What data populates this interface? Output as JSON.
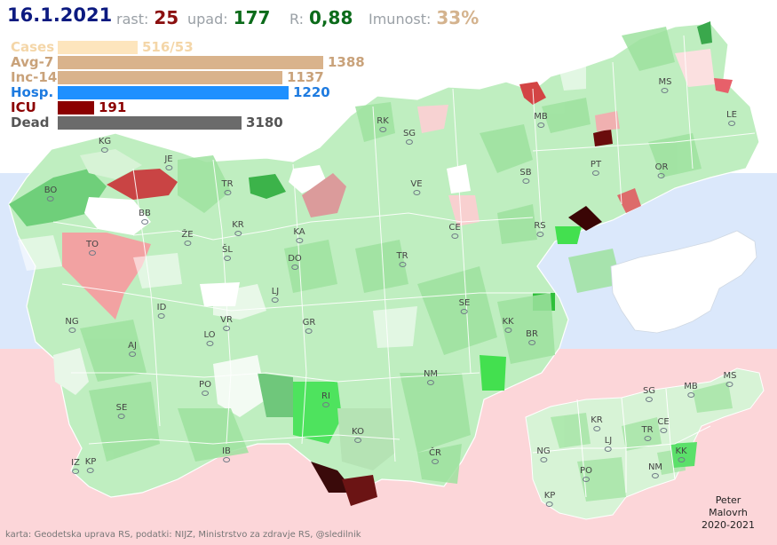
{
  "header": {
    "date": "16.1.2021",
    "rast_label": "rast:",
    "rast_value": "25",
    "upad_label": "upad:",
    "upad_value": "177",
    "r_label": "R:",
    "r_value": "0,88",
    "imunost_label": "Imunost:",
    "imunost_value": "33%"
  },
  "stats": [
    {
      "name": "Cases",
      "value": "516/53",
      "fraction": 0.265,
      "bar_color": "#fde5bd",
      "text_color": "#f4d6a8"
    },
    {
      "name": "Avg-7",
      "value": "1388",
      "fraction": 0.88,
      "bar_color": "#d9b38c",
      "text_color": "#c9a27a"
    },
    {
      "name": "Inc-14",
      "value": "1137",
      "fraction": 0.745,
      "bar_color": "#d9b38c",
      "text_color": "#c9a27a"
    },
    {
      "name": "Hosp.",
      "value": "1220",
      "fraction": 0.765,
      "bar_color": "#1e90ff",
      "text_color": "#1e7be0"
    },
    {
      "name": "ICU",
      "value": "191",
      "fraction": 0.12,
      "bar_color": "#8b0000",
      "text_color": "#8b0000"
    },
    {
      "name": "Dead",
      "value": "3180",
      "fraction": 0.61,
      "bar_color": "#6b6b6b",
      "text_color": "#555555"
    }
  ],
  "municipalities": [
    "KG",
    "JE",
    "BO",
    "BB",
    "TR",
    "KR",
    "TO",
    "ŽE",
    "ŠL",
    "KA",
    "DO",
    "LJ",
    "ID",
    "NG",
    "VR",
    "AJ",
    "LO",
    "GR",
    "PO",
    "SE",
    "IZ",
    "KP",
    "IB",
    "RI",
    "KO",
    "ČR",
    "NM",
    "TR",
    "SE",
    "KK",
    "BR",
    "RS",
    "CE",
    "VE",
    "SG",
    "RK",
    "MB",
    "SB",
    "PT",
    "OR",
    "MS",
    "LE"
  ],
  "inset_labels": [
    "SG",
    "MB",
    "MS",
    "KR",
    "CE",
    "LJ",
    "TR",
    "NG",
    "PO",
    "KK",
    "NM",
    "KP"
  ],
  "colors": {
    "band_top": "#ffffff",
    "band_middle": "#dbe8fb",
    "band_bottom": "#fcd6d9",
    "green_light": "#d4f2d4",
    "green_mid": "#8fdc8f",
    "green_dark": "#3cb34a",
    "red_light": "#f4b4b4",
    "red_mid": "#c94b4b",
    "red_dark": "#4a0c0c"
  },
  "footer_text": "karta: Geodetska uprava RS,  podatki: NIJZ, Ministrstvo za zdravje RS, @sledilnik",
  "author_lines": [
    "Peter",
    "Malovrh",
    "2020-2021"
  ]
}
